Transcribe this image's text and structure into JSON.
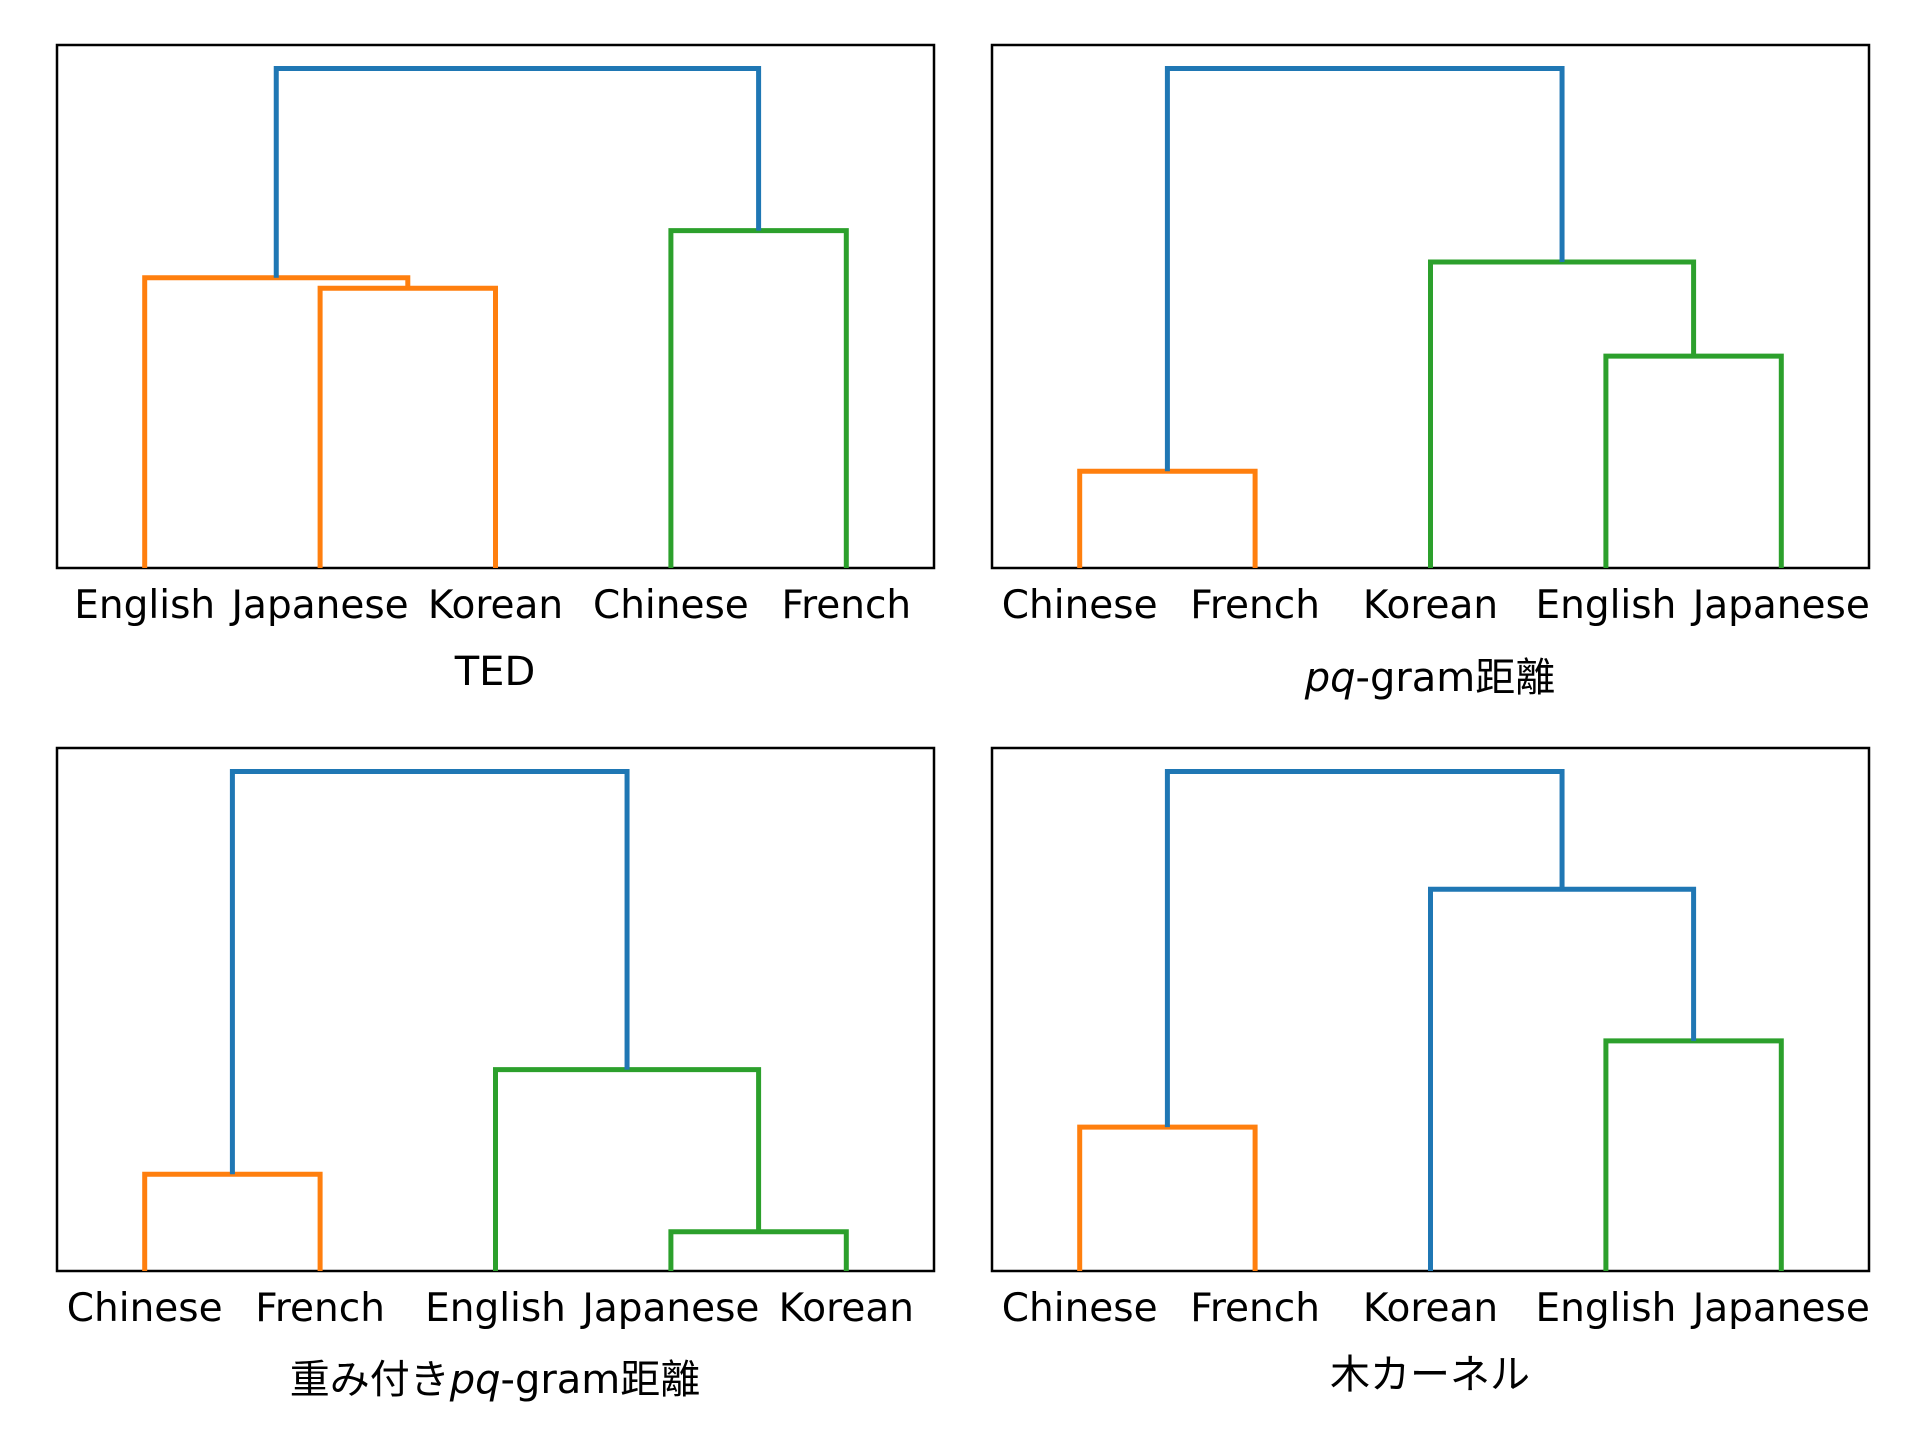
{
  "colors": {
    "blue": "#1f77b4",
    "orange": "#ff7f0e",
    "green": "#2ca02c",
    "frame": "#000000"
  },
  "chart_data": [
    {
      "type": "dendrogram",
      "xlabel": "TED",
      "xlabel_italic_prefix": "",
      "xlabel_suffix": "",
      "leaves": [
        "English",
        "Japanese",
        "Korean",
        "Chinese",
        "French"
      ],
      "ylim": [
        0,
        1.0
      ],
      "grid": false,
      "links": [
        {
          "left": [
            0,
            0
          ],
          "right": [
            1.5,
            0.535
          ],
          "height": 0.555,
          "color": "orange"
        },
        {
          "left": [
            1,
            0
          ],
          "right": [
            2,
            0
          ],
          "height": 0.535,
          "color": "orange"
        },
        {
          "left": [
            3,
            0
          ],
          "right": [
            4,
            0
          ],
          "height": 0.645,
          "color": "green"
        },
        {
          "left": [
            0.75,
            0.555
          ],
          "right": [
            3.5,
            0.645
          ],
          "height": 0.955,
          "color": "blue"
        }
      ]
    },
    {
      "type": "dendrogram",
      "xlabel": "",
      "xlabel_italic_prefix": "pq",
      "xlabel_suffix": "-gram距離",
      "leaves": [
        "Chinese",
        "French",
        "Korean",
        "English",
        "Japanese"
      ],
      "ylim": [
        0,
        1.0
      ],
      "grid": false,
      "links": [
        {
          "left": [
            0,
            0
          ],
          "right": [
            1,
            0
          ],
          "height": 0.185,
          "color": "orange"
        },
        {
          "left": [
            3,
            0
          ],
          "right": [
            4,
            0
          ],
          "height": 0.405,
          "color": "green"
        },
        {
          "left": [
            2,
            0
          ],
          "right": [
            3.5,
            0.405
          ],
          "height": 0.585,
          "color": "green"
        },
        {
          "left": [
            0.5,
            0.185
          ],
          "right": [
            2.75,
            0.585
          ],
          "height": 0.955,
          "color": "blue"
        }
      ]
    },
    {
      "type": "dendrogram",
      "xlabel": "",
      "xlabel_italic_prefix": "pq",
      "xlabel_suffix": "-gram距離",
      "xlabel_prefix": "重み付き",
      "leaves": [
        "Chinese",
        "French",
        "English",
        "Japanese",
        "Korean"
      ],
      "ylim": [
        0,
        1.0
      ],
      "grid": false,
      "links": [
        {
          "left": [
            0,
            0
          ],
          "right": [
            1,
            0
          ],
          "height": 0.185,
          "color": "orange"
        },
        {
          "left": [
            3,
            0
          ],
          "right": [
            4,
            0
          ],
          "height": 0.075,
          "color": "green"
        },
        {
          "left": [
            2,
            0
          ],
          "right": [
            3.5,
            0.075
          ],
          "height": 0.385,
          "color": "green"
        },
        {
          "left": [
            0.5,
            0.185
          ],
          "right": [
            2.75,
            0.385
          ],
          "height": 0.955,
          "color": "blue"
        }
      ]
    },
    {
      "type": "dendrogram",
      "xlabel": "木カーネル",
      "xlabel_italic_prefix": "",
      "xlabel_suffix": "",
      "leaves": [
        "Chinese",
        "French",
        "Korean",
        "English",
        "Japanese"
      ],
      "ylim": [
        0,
        1.0
      ],
      "grid": false,
      "links": [
        {
          "left": [
            0,
            0
          ],
          "right": [
            1,
            0
          ],
          "height": 0.275,
          "color": "orange"
        },
        {
          "left": [
            3,
            0
          ],
          "right": [
            4,
            0
          ],
          "height": 0.44,
          "color": "green"
        },
        {
          "left": [
            2,
            0
          ],
          "right": [
            3.5,
            0.44
          ],
          "height": 0.73,
          "color": "blue"
        },
        {
          "left": [
            0.5,
            0.275
          ],
          "right": [
            2.75,
            0.73
          ],
          "height": 0.955,
          "color": "blue"
        }
      ]
    }
  ]
}
